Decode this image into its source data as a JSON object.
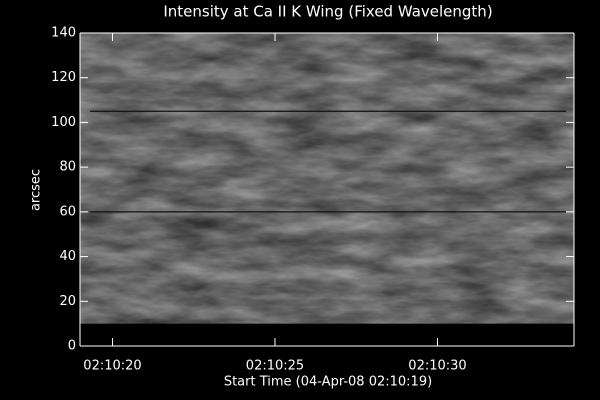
{
  "chart_data": {
    "type": "image",
    "title": "Intensity at Ca II K Wing (Fixed Wavelength)",
    "x_label": "Start Time (04-Apr-08 02:10:19)",
    "y_label": "arcsec",
    "xlim": [
      19,
      34.2
    ],
    "xticks": [
      {
        "value": 20,
        "label": "02:10:20"
      },
      {
        "value": 25,
        "label": "02:10:25"
      },
      {
        "value": 30,
        "label": "02:10:30"
      }
    ],
    "ylim": [
      0,
      140
    ],
    "yticks": [
      0,
      20,
      40,
      60,
      80,
      100,
      120,
      140
    ],
    "image_ylim": [
      10,
      140
    ],
    "hlines": [
      105,
      60
    ]
  }
}
